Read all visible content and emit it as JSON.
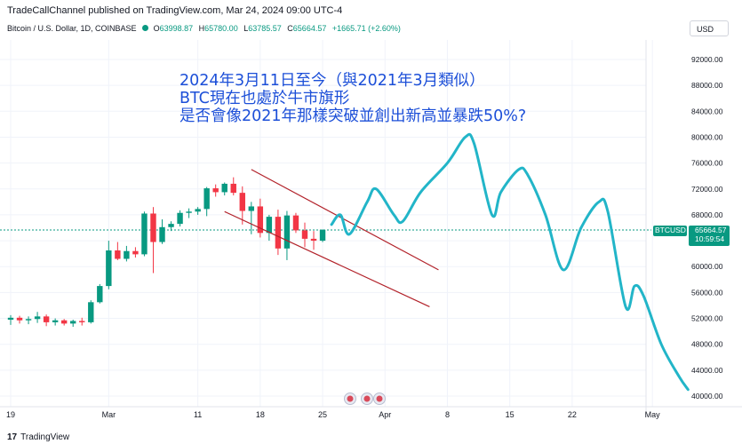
{
  "header": {
    "published": "TradeCallChannel published on TradingView.com, Mar 24, 2024 09:00 UTC-4",
    "symbol": "Bitcoin / U.S. Dollar, 1D, COINBASE",
    "ohlc": {
      "o_label": "O",
      "o": "63998.87",
      "h_label": "H",
      "h": "65780.00",
      "l_label": "L",
      "l": "63785.57",
      "c_label": "C",
      "c": "65664.57",
      "change": "+1665.71 (+2.60%)"
    },
    "currency": "USD"
  },
  "annotation": {
    "line1": "2024年3月11日至今（與2021年3月類似）",
    "line2": "BTC現在也處於牛市旗形",
    "line3": "是否會像2021年那樣突破並創出新高並暴跌50%?"
  },
  "price_label": {
    "symbol": "BTCUSD",
    "price": "65664.57",
    "countdown": "10:59:54",
    "color": "#089981"
  },
  "footer": {
    "logo_text": "17",
    "brand": "TradingView"
  },
  "colors": {
    "up": "#089981",
    "down": "#f23645",
    "projection": "#22b5c8",
    "channel": "#b2222a"
  },
  "chart_data": {
    "type": "candlestick",
    "symbol": "BTCUSD",
    "interval": "1D",
    "ylim": [
      38000,
      96000
    ],
    "y_ticks": [
      "92000.00",
      "88000.00",
      "84000.00",
      "80000.00",
      "76000.00",
      "72000.00",
      "68000.00",
      "64000.00",
      "60000.00",
      "56000.00",
      "52000.00",
      "48000.00",
      "44000.00",
      "40000.00"
    ],
    "x_ticks": [
      {
        "label": "19",
        "index": 0
      },
      {
        "label": "Mar",
        "index": 11
      },
      {
        "label": "11",
        "index": 21
      },
      {
        "label": "18",
        "index": 28
      },
      {
        "label": "25",
        "index": 35
      },
      {
        "label": "Apr",
        "index": 42
      },
      {
        "label": "8",
        "index": 49
      },
      {
        "label": "15",
        "index": 56
      },
      {
        "label": "22",
        "index": 63
      },
      {
        "label": "May",
        "index": 72
      }
    ],
    "candles": [
      {
        "o": 51800,
        "h": 52500,
        "l": 51000,
        "c": 52100
      },
      {
        "o": 52100,
        "h": 52400,
        "l": 51200,
        "c": 51700
      },
      {
        "o": 51700,
        "h": 52300,
        "l": 51100,
        "c": 51900
      },
      {
        "o": 51900,
        "h": 53000,
        "l": 51300,
        "c": 52300
      },
      {
        "o": 52300,
        "h": 52600,
        "l": 50800,
        "c": 51400
      },
      {
        "o": 51400,
        "h": 52000,
        "l": 50900,
        "c": 51700
      },
      {
        "o": 51700,
        "h": 51900,
        "l": 50900,
        "c": 51200
      },
      {
        "o": 51200,
        "h": 51800,
        "l": 50700,
        "c": 51600
      },
      {
        "o": 51600,
        "h": 52100,
        "l": 50900,
        "c": 51400
      },
      {
        "o": 51400,
        "h": 54800,
        "l": 51200,
        "c": 54500
      },
      {
        "o": 54500,
        "h": 57300,
        "l": 54300,
        "c": 57000
      },
      {
        "o": 57000,
        "h": 64000,
        "l": 56500,
        "c": 62500
      },
      {
        "o": 62500,
        "h": 63800,
        "l": 61000,
        "c": 61200
      },
      {
        "o": 61200,
        "h": 63200,
        "l": 60800,
        "c": 62400
      },
      {
        "o": 62400,
        "h": 63000,
        "l": 61400,
        "c": 61900
      },
      {
        "o": 61900,
        "h": 68500,
        "l": 61600,
        "c": 68200
      },
      {
        "o": 68200,
        "h": 69200,
        "l": 59000,
        "c": 63800
      },
      {
        "o": 63800,
        "h": 67300,
        "l": 63500,
        "c": 66100
      },
      {
        "o": 66100,
        "h": 67000,
        "l": 65500,
        "c": 66600
      },
      {
        "o": 66600,
        "h": 68700,
        "l": 66200,
        "c": 68300
      },
      {
        "o": 68300,
        "h": 69000,
        "l": 67500,
        "c": 68500
      },
      {
        "o": 68500,
        "h": 69200,
        "l": 68000,
        "c": 68900
      },
      {
        "o": 68900,
        "h": 72300,
        "l": 67800,
        "c": 72100
      },
      {
        "o": 72100,
        "h": 72700,
        "l": 70800,
        "c": 71500
      },
      {
        "o": 71500,
        "h": 73000,
        "l": 71000,
        "c": 72800
      },
      {
        "o": 72800,
        "h": 73800,
        "l": 71000,
        "c": 71400
      },
      {
        "o": 71400,
        "h": 72400,
        "l": 66500,
        "c": 68600
      },
      {
        "o": 68600,
        "h": 70000,
        "l": 65000,
        "c": 69300
      },
      {
        "o": 69300,
        "h": 70500,
        "l": 64500,
        "c": 65200
      },
      {
        "o": 65200,
        "h": 68000,
        "l": 64000,
        "c": 67700
      },
      {
        "o": 67700,
        "h": 68800,
        "l": 61800,
        "c": 62800
      },
      {
        "o": 62800,
        "h": 68600,
        "l": 61000,
        "c": 67900
      },
      {
        "o": 67900,
        "h": 68300,
        "l": 65200,
        "c": 65600
      },
      {
        "o": 65600,
        "h": 66800,
        "l": 63000,
        "c": 64300
      },
      {
        "o": 64300,
        "h": 65500,
        "l": 62600,
        "c": 64000
      },
      {
        "o": 64000,
        "h": 65780,
        "l": 63786,
        "c": 65665
      }
    ],
    "channel_lines": [
      {
        "from": {
          "index": 27,
          "price": 75000
        },
        "to": {
          "index": 48,
          "price": 59500
        }
      },
      {
        "from": {
          "index": 24,
          "price": 68500
        },
        "to": {
          "index": 47,
          "price": 53800
        }
      }
    ],
    "projection": [
      {
        "index": 36,
        "price": 66500
      },
      {
        "index": 37,
        "price": 68000
      },
      {
        "index": 38,
        "price": 65000
      },
      {
        "index": 40,
        "price": 70000
      },
      {
        "index": 41,
        "price": 72000
      },
      {
        "index": 43,
        "price": 68000
      },
      {
        "index": 44,
        "price": 67000
      },
      {
        "index": 46,
        "price": 71500
      },
      {
        "index": 49,
        "price": 76000
      },
      {
        "index": 51,
        "price": 80000
      },
      {
        "index": 52,
        "price": 79000
      },
      {
        "index": 54,
        "price": 68000
      },
      {
        "index": 55,
        "price": 71500
      },
      {
        "index": 57,
        "price": 75000
      },
      {
        "index": 58,
        "price": 74200
      },
      {
        "index": 60,
        "price": 68000
      },
      {
        "index": 62,
        "price": 59500
      },
      {
        "index": 64,
        "price": 66000
      },
      {
        "index": 66,
        "price": 70000
      },
      {
        "index": 67,
        "price": 68500
      },
      {
        "index": 69,
        "price": 53800
      },
      {
        "index": 70,
        "price": 57000
      },
      {
        "index": 71,
        "price": 55500
      },
      {
        "index": 73,
        "price": 48000
      },
      {
        "index": 75,
        "price": 43000
      },
      {
        "index": 76,
        "price": 41000
      }
    ],
    "last_price": 65664.57
  }
}
